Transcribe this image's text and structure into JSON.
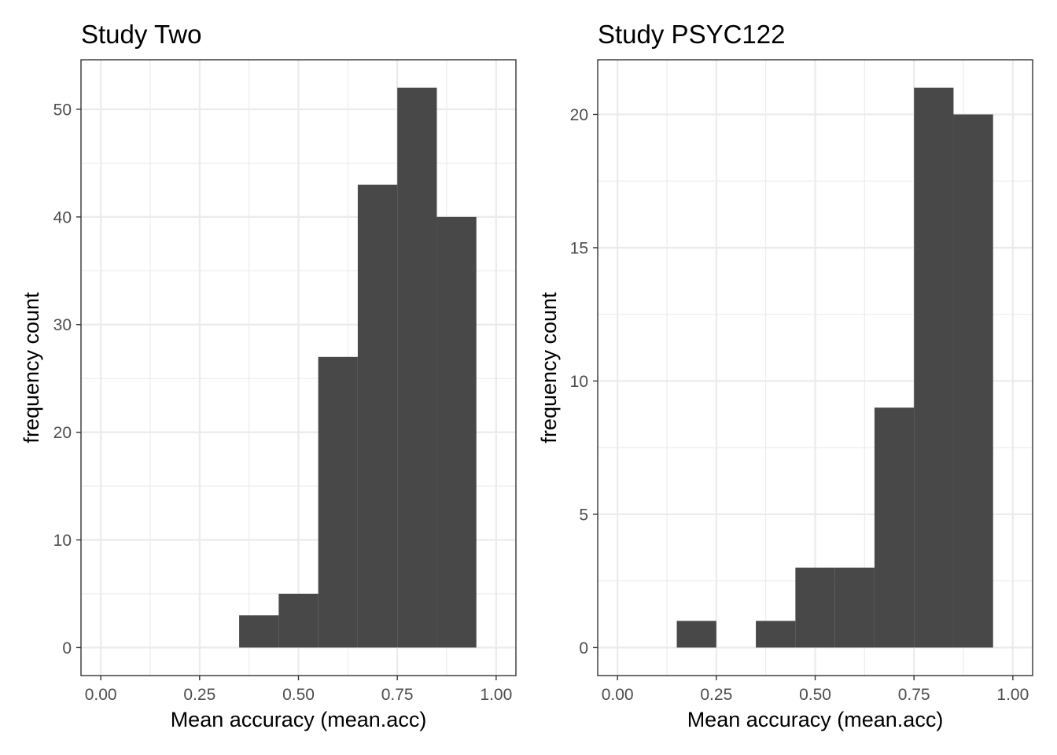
{
  "chart_data": [
    {
      "type": "bar",
      "title": "Study Two",
      "xlabel": "Mean accuracy (mean.acc)",
      "ylabel": "frequency count",
      "bin_width": 0.1,
      "bins": [
        {
          "x0": 0.35,
          "x1": 0.45,
          "count": 3
        },
        {
          "x0": 0.45,
          "x1": 0.55,
          "count": 5
        },
        {
          "x0": 0.55,
          "x1": 0.65,
          "count": 27
        },
        {
          "x0": 0.65,
          "x1": 0.75,
          "count": 43
        },
        {
          "x0": 0.75,
          "x1": 0.85,
          "count": 52
        },
        {
          "x0": 0.85,
          "x1": 0.95,
          "count": 40
        }
      ],
      "xlim": [
        -0.05,
        1.05
      ],
      "ylim": [
        -2.6,
        54.6
      ],
      "x_ticks": [
        0,
        0.25,
        0.5,
        0.75,
        1
      ],
      "x_tick_labels": [
        "0.00",
        "0.25",
        "0.50",
        "0.75",
        "1.00"
      ],
      "y_ticks": [
        0,
        10,
        20,
        30,
        40,
        50
      ],
      "y_tick_labels": [
        "0",
        "10",
        "20",
        "30",
        "40",
        "50"
      ],
      "grid": true,
      "bar_color": "#484848"
    },
    {
      "type": "bar",
      "title": "Study PSYC122",
      "xlabel": "Mean accuracy (mean.acc)",
      "ylabel": "frequency count",
      "bin_width": 0.1,
      "bins": [
        {
          "x0": 0.15,
          "x1": 0.25,
          "count": 1
        },
        {
          "x0": 0.35,
          "x1": 0.45,
          "count": 1
        },
        {
          "x0": 0.45,
          "x1": 0.55,
          "count": 3
        },
        {
          "x0": 0.55,
          "x1": 0.65,
          "count": 3
        },
        {
          "x0": 0.65,
          "x1": 0.75,
          "count": 9
        },
        {
          "x0": 0.75,
          "x1": 0.85,
          "count": 21
        },
        {
          "x0": 0.85,
          "x1": 0.95,
          "count": 20
        }
      ],
      "xlim": [
        -0.05,
        1.05
      ],
      "ylim": [
        -1.05,
        22.05
      ],
      "x_ticks": [
        0,
        0.25,
        0.5,
        0.75,
        1
      ],
      "x_tick_labels": [
        "0.00",
        "0.25",
        "0.50",
        "0.75",
        "1.00"
      ],
      "y_ticks": [
        0,
        5,
        10,
        15,
        20
      ],
      "y_tick_labels": [
        "0",
        "5",
        "10",
        "15",
        "20"
      ],
      "grid": true,
      "bar_color": "#484848"
    }
  ]
}
